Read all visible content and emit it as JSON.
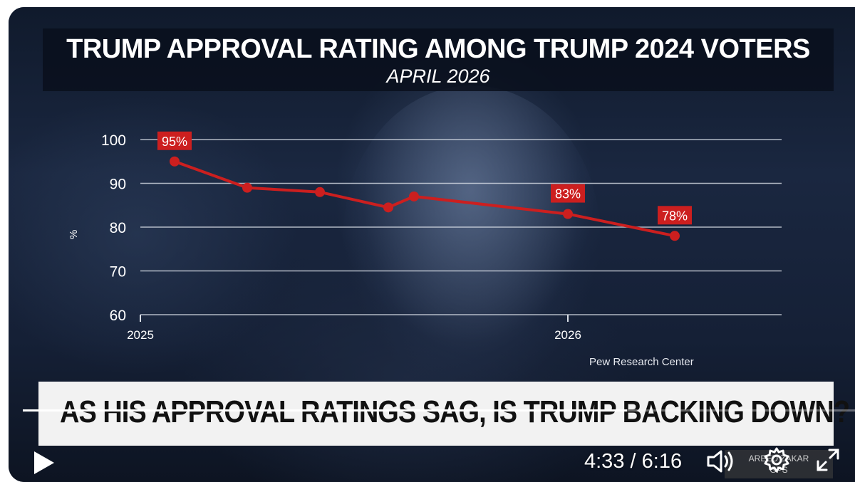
{
  "video": {
    "title": "TRUMP APPROVAL RATING AMONG TRUMP 2024 VOTERS",
    "subtitle": "APRIL 2026",
    "source": "Pew Research Center",
    "headline": "AS HIS APPROVAL RATINGS SAG, IS TRUMP BACKING DOWN?",
    "show_tag_line1": "AREED ZAKAR",
    "show_tag_line2": "GPS"
  },
  "chart_data": {
    "type": "line",
    "title": "TRUMP APPROVAL RATING AMONG TRUMP 2024 VOTERS",
    "subtitle": "APRIL 2026",
    "xlabel": "",
    "ylabel": "%",
    "ylim": [
      60,
      100
    ],
    "yticks": [
      "100",
      "90",
      "80",
      "70",
      "60"
    ],
    "xticks": [
      "2025",
      "2026"
    ],
    "xlim": [
      2025.0,
      2026.5
    ],
    "grid": true,
    "series": [
      {
        "x": [
          2025.08,
          2025.25,
          2025.42,
          2025.58,
          2025.64,
          2026.0,
          2026.25
        ],
        "values": [
          95,
          89,
          88,
          84.5,
          87,
          83,
          78
        ],
        "labels": [
          "95%",
          "",
          "",
          "",
          "",
          "83%",
          "78%"
        ]
      }
    ],
    "line_color": "#cc1f1f"
  },
  "player": {
    "current_time": "4:33",
    "duration": "6:16",
    "time_separator": "/",
    "progress": 0.726,
    "play_icon": "play-icon",
    "volume_icon": "volume-icon",
    "settings_icon": "gear-icon",
    "fullscreen_icon": "fullscreen-icon"
  }
}
